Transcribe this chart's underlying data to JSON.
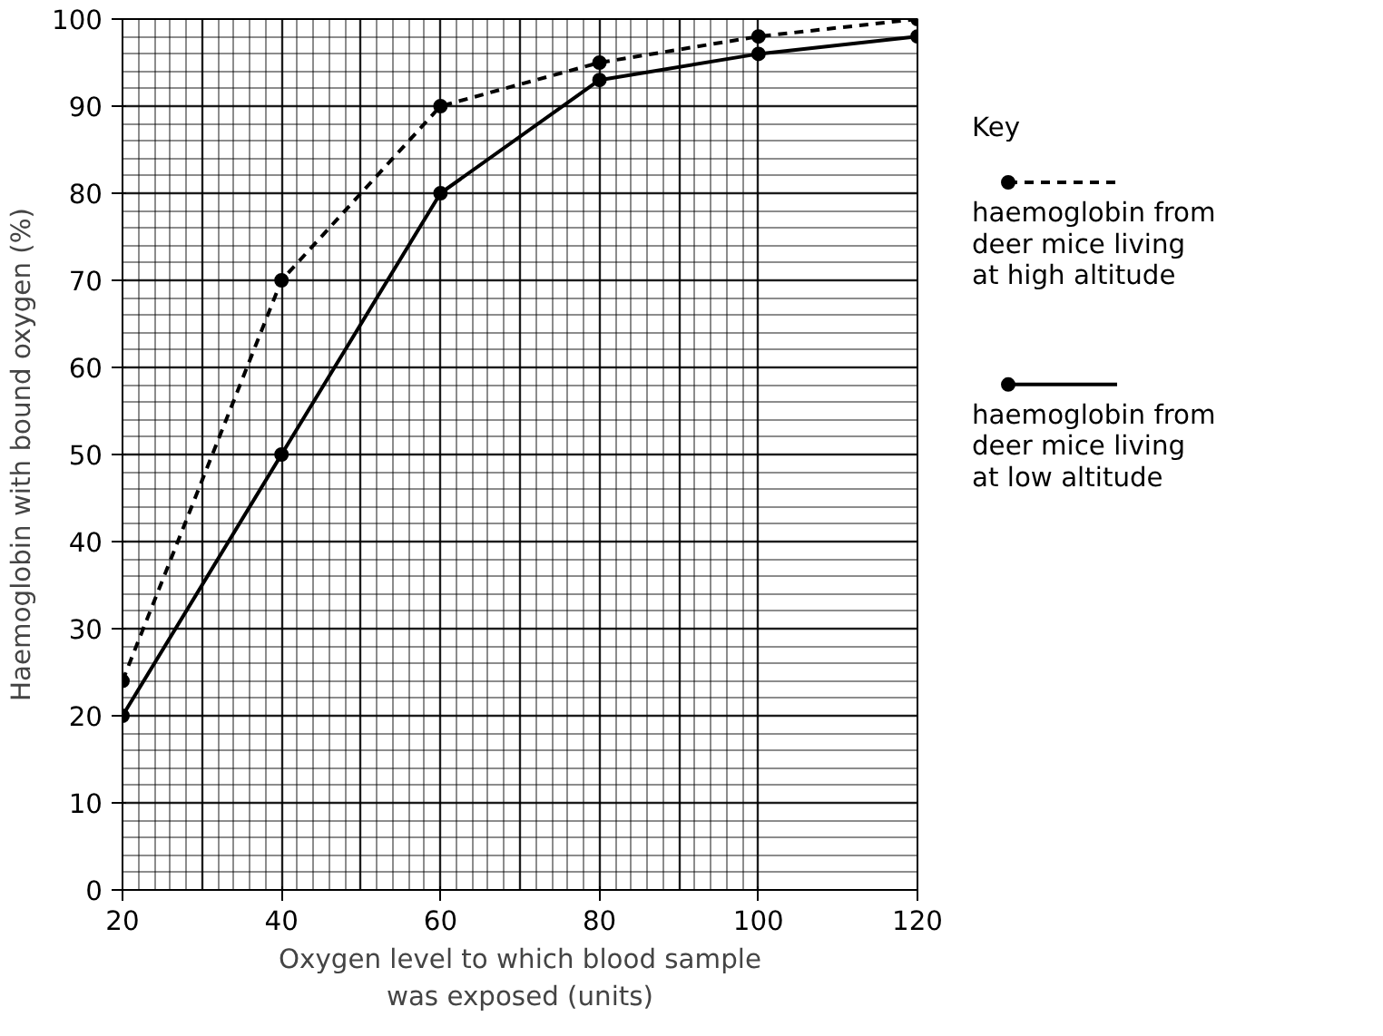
{
  "chart_data": {
    "type": "line",
    "xlabel": "Oxygen level to which blood sample was exposed (units)",
    "ylabel": "Haemoglobin with bound oxygen (%)",
    "legend_title": "Key",
    "x": [
      20,
      40,
      60,
      80,
      100,
      120
    ],
    "series": [
      {
        "name": "haemoglobin from deer mice living at high altitude",
        "color": "#000000",
        "line_style": "dashed",
        "values": [
          24,
          70,
          90,
          95,
          98,
          100
        ]
      },
      {
        "name": "haemoglobin from deer mice living at low altitude",
        "color": "#000000",
        "line_style": "solid",
        "values": [
          20,
          50,
          80,
          93,
          96,
          98
        ]
      }
    ],
    "xlim": [
      20,
      120
    ],
    "ylim": [
      0,
      100
    ],
    "xticks": [
      20,
      40,
      60,
      80,
      100,
      120
    ],
    "yticks": [
      0,
      10,
      20,
      30,
      40,
      50,
      60,
      70,
      80,
      90,
      100
    ],
    "grid": true,
    "legend": "right",
    "marker": "circle"
  }
}
